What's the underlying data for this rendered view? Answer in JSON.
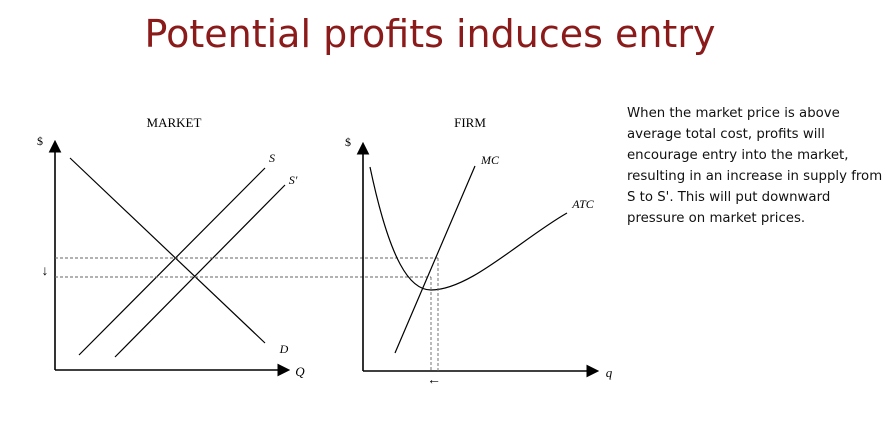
{
  "slide": {
    "title": "Potential profits induces entry",
    "explanation": "When the market price is above average total cost, profits will encourage entry into the market, resulting in an increase in supply from S to S'. This will put downward pressure on market prices."
  },
  "market": {
    "title": "MARKET",
    "y_axis_label": "$",
    "x_axis_label": "Q",
    "supply_label": "S",
    "new_supply_label": "S'",
    "demand_label": "D",
    "price_change_arrow": "↓"
  },
  "firm": {
    "title": "FIRM",
    "y_axis_label": "$",
    "x_axis_label": "q",
    "mc_label": "MC",
    "atc_label": "ATC",
    "quantity_change_arrow": "←"
  },
  "colors": {
    "title": "#8b1a1a",
    "lines": "#000000",
    "dashed": "#666666"
  }
}
